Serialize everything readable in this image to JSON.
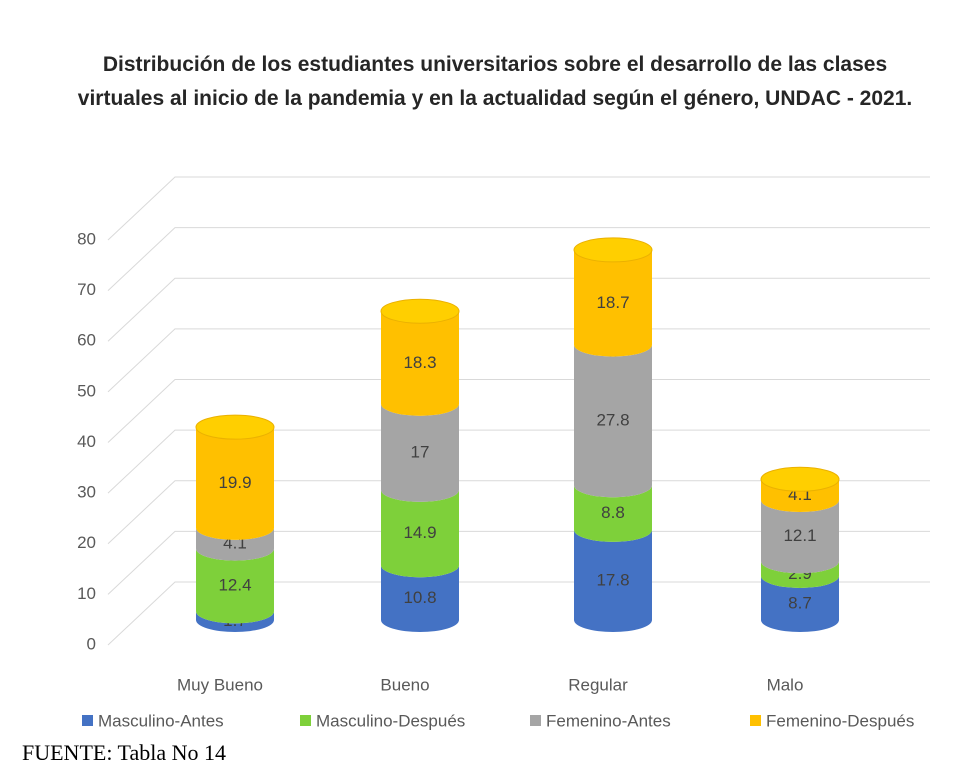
{
  "chart_data": {
    "type": "bar3d_stacked",
    "title": "Distribución de los estudiantes universitarios sobre el desarrollo de las clases virtuales al inicio de la pandemia y en la actualidad según el género, UNDAC - 2021.",
    "categories": [
      "Muy Bueno",
      "Bueno",
      "Regular",
      "Malo"
    ],
    "series": [
      {
        "name": "Masculino-Antes",
        "color": "#4472c4",
        "values": [
          1.7,
          10.8,
          17.8,
          8.7
        ]
      },
      {
        "name": "Masculino-Después",
        "color": "#7ed03a",
        "values": [
          12.4,
          14.9,
          8.8,
          2.9
        ]
      },
      {
        "name": "Femenino-Antes",
        "color": "#a5a5a5",
        "values": [
          4.1,
          17,
          27.8,
          12.1
        ]
      },
      {
        "name": "Femenino-Después",
        "color": "#ffc000",
        "values": [
          19.9,
          18.3,
          18.7,
          4.1
        ]
      }
    ],
    "ylim": [
      0,
      80
    ],
    "yticks": [
      0,
      10,
      20,
      30,
      40,
      50,
      60,
      70,
      80
    ],
    "grid": true,
    "legend": "bottom",
    "source": "FUENTE: Tabla No 14"
  }
}
